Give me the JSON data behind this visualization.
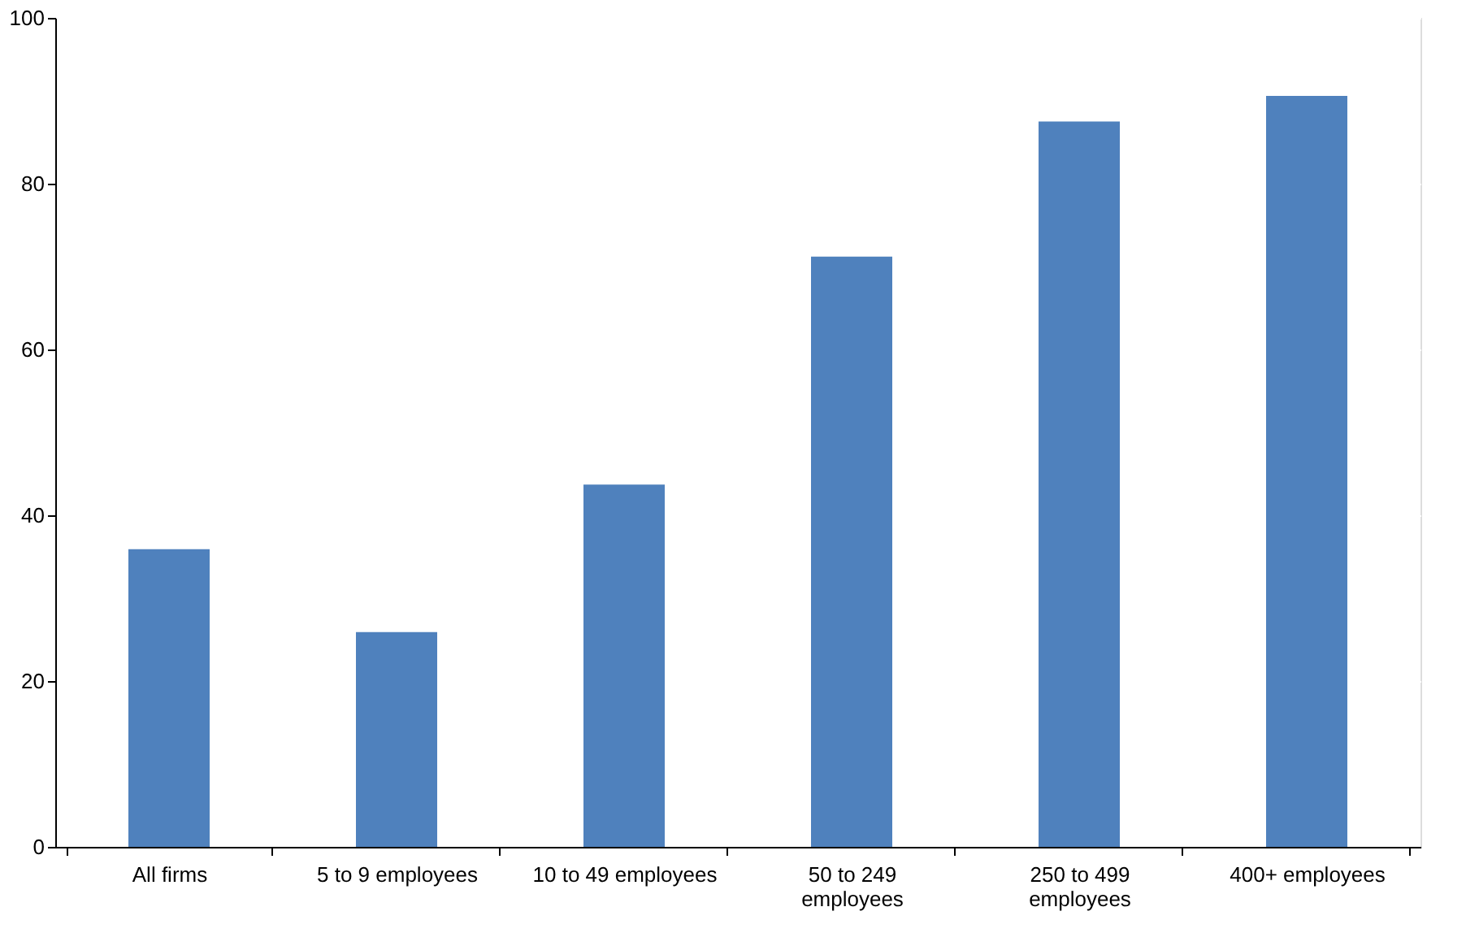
{
  "chart_data": {
    "type": "bar",
    "categories": [
      "All firms",
      "5 to 9 employees",
      "10 to 49 employees",
      "50 to 249 employees",
      "250 to 499 employees",
      "400+ employees"
    ],
    "values": [
      35.9,
      25.9,
      43.7,
      71.2,
      87.5,
      90.6
    ],
    "color": "#4f81bd",
    "ylim": [
      0,
      100
    ],
    "yticks": [
      0,
      20,
      40,
      60,
      80,
      100
    ],
    "grid": true
  }
}
